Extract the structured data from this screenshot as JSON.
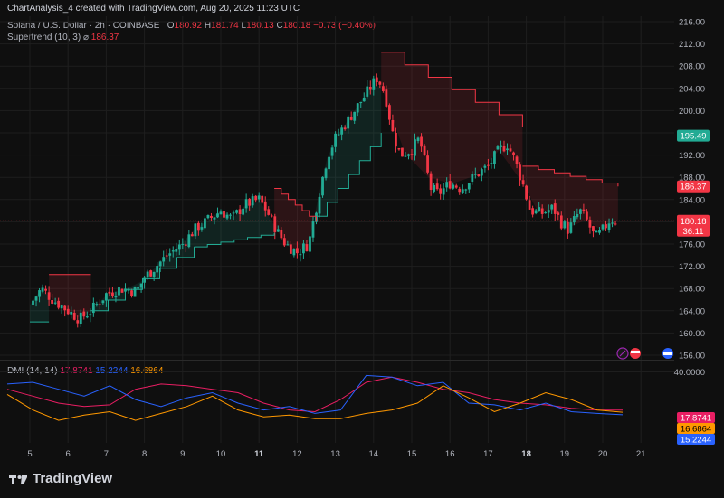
{
  "header": {
    "caption": "ChartAnalysis_4 created with TradingView.com, Aug 20, 2025 11:23 UTC"
  },
  "legend": {
    "symbol": "Solana / U.S. Dollar · 2h · COINBASE",
    "open_label": "O",
    "open": "180.92",
    "high_label": "H",
    "high": "181.74",
    "low_label": "L",
    "low": "180.13",
    "close_label": "C",
    "close": "180.18",
    "change": "−0.73 (−0.40%)",
    "supertrend_label": "Supertrend (10, 3)",
    "supertrend_symbol": "⌀",
    "supertrend_value": "186.37"
  },
  "dmi": {
    "label": "DMI (14, 14)",
    "plus_di": "17.8741",
    "minus_di": "15.2244",
    "adx": "16.6864"
  },
  "price_axis": {
    "ticks": [
      "216.00",
      "212.00",
      "208.00",
      "204.00",
      "200.00",
      "196.00",
      "192.00",
      "188.00",
      "184.00",
      "180.00",
      "176.00",
      "172.00",
      "168.00",
      "164.00",
      "160.00",
      "156.00"
    ],
    "tags": [
      {
        "value": 195.49,
        "text": "195.49",
        "color": "#22ab94"
      },
      {
        "value": 186.37,
        "text": "186.37",
        "color": "#f23645"
      },
      {
        "value": 180.18,
        "text": "180.18",
        "subtext": "36:11",
        "color": "#f23645"
      }
    ]
  },
  "dmi_axis": {
    "ticks": [
      "40.0000"
    ],
    "tags": [
      {
        "text": "17.8741",
        "color": "#e91e63"
      },
      {
        "text": "16.6864",
        "color": "#ff9800"
      },
      {
        "text": "15.2244",
        "color": "#2962ff"
      }
    ]
  },
  "time_axis": {
    "labels": [
      {
        "text": "5",
        "bold": false
      },
      {
        "text": "6",
        "bold": false
      },
      {
        "text": "7",
        "bold": false
      },
      {
        "text": "8",
        "bold": false
      },
      {
        "text": "9",
        "bold": false
      },
      {
        "text": "10",
        "bold": false
      },
      {
        "text": "11",
        "bold": true
      },
      {
        "text": "12",
        "bold": false
      },
      {
        "text": "13",
        "bold": false
      },
      {
        "text": "14",
        "bold": false
      },
      {
        "text": "15",
        "bold": false
      },
      {
        "text": "16",
        "bold": false
      },
      {
        "text": "17",
        "bold": false
      },
      {
        "text": "18",
        "bold": true
      },
      {
        "text": "19",
        "bold": false
      },
      {
        "text": "20",
        "bold": false
      },
      {
        "text": "21",
        "bold": false
      }
    ]
  },
  "brand": {
    "name": "TradingView"
  },
  "colors": {
    "up": "#22ab94",
    "down": "#f23645",
    "background": "#0f0f0f",
    "grid": "#1e1e1e"
  },
  "chart_data": {
    "type": "candlestick",
    "title": "Solana / U.S. Dollar · 2h · COINBASE",
    "ylim": [
      156,
      216
    ],
    "x_labels": [
      "5",
      "6",
      "7",
      "8",
      "9",
      "10",
      "11",
      "12",
      "13",
      "14",
      "15",
      "16",
      "17",
      "18",
      "19",
      "20",
      "21"
    ],
    "close_path": [
      {
        "day": 5.0,
        "close": 165.0
      },
      {
        "day": 5.3,
        "close": 168.0
      },
      {
        "day": 5.6,
        "close": 166.0
      },
      {
        "day": 6.0,
        "close": 164.0
      },
      {
        "day": 6.3,
        "close": 162.5
      },
      {
        "day": 6.6,
        "close": 164.0
      },
      {
        "day": 7.0,
        "close": 167.0
      },
      {
        "day": 7.4,
        "close": 168.0
      },
      {
        "day": 7.8,
        "close": 167.5
      },
      {
        "day": 8.0,
        "close": 170.0
      },
      {
        "day": 8.3,
        "close": 172.0
      },
      {
        "day": 8.6,
        "close": 174.0
      },
      {
        "day": 9.0,
        "close": 176.0
      },
      {
        "day": 9.3,
        "close": 178.5
      },
      {
        "day": 9.6,
        "close": 180.0
      },
      {
        "day": 10.0,
        "close": 182.0
      },
      {
        "day": 10.3,
        "close": 180.5
      },
      {
        "day": 10.6,
        "close": 183.0
      },
      {
        "day": 11.0,
        "close": 184.0
      },
      {
        "day": 11.2,
        "close": 182.0
      },
      {
        "day": 11.5,
        "close": 178.0
      },
      {
        "day": 11.7,
        "close": 176.0
      },
      {
        "day": 12.0,
        "close": 174.5
      },
      {
        "day": 12.3,
        "close": 176.0
      },
      {
        "day": 12.6,
        "close": 186.0
      },
      {
        "day": 12.8,
        "close": 192.0
      },
      {
        "day": 13.0,
        "close": 195.0
      },
      {
        "day": 13.3,
        "close": 198.0
      },
      {
        "day": 13.6,
        "close": 201.0
      },
      {
        "day": 13.9,
        "close": 204.0
      },
      {
        "day": 14.1,
        "close": 206.0
      },
      {
        "day": 14.3,
        "close": 203.0
      },
      {
        "day": 14.5,
        "close": 196.0
      },
      {
        "day": 14.7,
        "close": 192.0
      },
      {
        "day": 15.0,
        "close": 193.0
      },
      {
        "day": 15.2,
        "close": 195.0
      },
      {
        "day": 15.5,
        "close": 186.0
      },
      {
        "day": 15.7,
        "close": 185.0
      },
      {
        "day": 16.0,
        "close": 187.0
      },
      {
        "day": 16.3,
        "close": 186.0
      },
      {
        "day": 16.6,
        "close": 188.0
      },
      {
        "day": 17.0,
        "close": 190.0
      },
      {
        "day": 17.3,
        "close": 193.0
      },
      {
        "day": 17.5,
        "close": 194.0
      },
      {
        "day": 17.7,
        "close": 191.0
      },
      {
        "day": 17.9,
        "close": 187.0
      },
      {
        "day": 18.1,
        "close": 182.0
      },
      {
        "day": 18.4,
        "close": 181.5
      },
      {
        "day": 18.7,
        "close": 182.5
      },
      {
        "day": 18.9,
        "close": 180.0
      },
      {
        "day": 19.1,
        "close": 178.5
      },
      {
        "day": 19.4,
        "close": 182.0
      },
      {
        "day": 19.6,
        "close": 180.0
      },
      {
        "day": 19.8,
        "close": 177.0
      },
      {
        "day": 20.0,
        "close": 178.5
      },
      {
        "day": 20.2,
        "close": 180.5
      },
      {
        "day": 20.35,
        "close": 180.18
      }
    ],
    "supertrend": [
      {
        "from": 5.0,
        "to": 5.5,
        "value": 162.0,
        "trend": "up"
      },
      {
        "from": 5.5,
        "to": 6.6,
        "value": 170.5,
        "trend": "down"
      },
      {
        "from": 6.6,
        "to": 9.3,
        "value": 164.0,
        "trend": "up",
        "end": 175.5
      },
      {
        "from": 9.3,
        "to": 11.4,
        "value": 175.5,
        "trend": "up",
        "end": 178.0
      },
      {
        "from": 11.4,
        "to": 12.5,
        "value": 186.0,
        "trend": "down",
        "end": 180.0
      },
      {
        "from": 12.5,
        "to": 14.2,
        "value": 181.0,
        "trend": "up",
        "end": 196.0
      },
      {
        "from": 14.2,
        "to": 17.9,
        "value": 210.5,
        "trend": "down",
        "end": 197.0
      },
      {
        "from": 17.9,
        "to": 20.4,
        "value": 190.0,
        "trend": "down",
        "end": 186.37
      }
    ],
    "dmi_series": [
      {
        "name": "+DI",
        "color": "#e91e63",
        "values": [
          30,
          26,
          22,
          20,
          21,
          30,
          33,
          32,
          30,
          28,
          22,
          18,
          17,
          24,
          34,
          37,
          34,
          30,
          28,
          24,
          22,
          21,
          19,
          18,
          17.87
        ]
      },
      {
        "name": "-DI",
        "color": "#2962ff",
        "values": [
          33,
          34,
          30,
          26,
          32,
          24,
          20,
          25,
          28,
          22,
          18,
          20,
          16,
          18,
          38,
          37,
          32,
          34,
          22,
          21,
          18,
          22,
          17,
          16,
          15.22
        ]
      },
      {
        "name": "ADX",
        "color": "#ff9800",
        "values": [
          27,
          18,
          12,
          15,
          17,
          12,
          16,
          20,
          26,
          18,
          14,
          15,
          13,
          13,
          16,
          18,
          22,
          32,
          25,
          17,
          22,
          28,
          24,
          18,
          16.69
        ]
      }
    ]
  }
}
